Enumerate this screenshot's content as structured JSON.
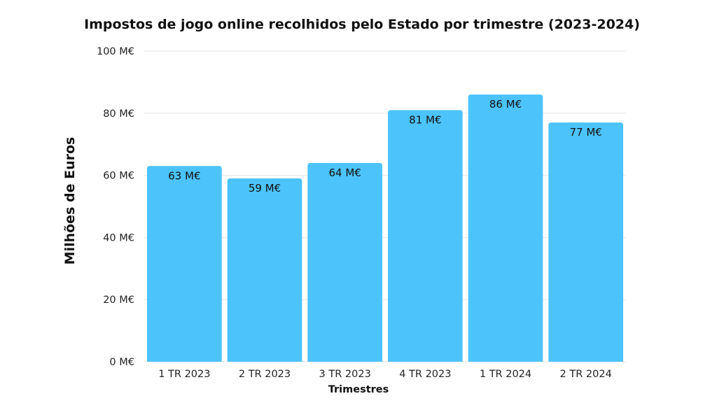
{
  "chart_data": {
    "type": "bar",
    "title": "Impostos de jogo online recolhidos pelo Estado por trimestre (2023-2024)",
    "xlabel": "Trimestres",
    "ylabel": "Milhões de Euros",
    "categories": [
      "1 TR 2023",
      "2 TR 2023",
      "3 TR 2023",
      "4 TR 2023",
      "1 TR 2024",
      "2 TR 2024"
    ],
    "values": [
      63,
      59,
      64,
      81,
      86,
      77
    ],
    "data_labels": [
      "63 M€",
      "59 M€",
      "64 M€",
      "81 M€",
      "86 M€",
      "77 M€"
    ],
    "ylim": [
      0,
      100
    ],
    "yticks": [
      0,
      20,
      40,
      60,
      80,
      100
    ],
    "ytick_labels": [
      "0 M€",
      "20 M€",
      "40 M€",
      "60 M€",
      "80 M€",
      "100 M€"
    ],
    "grid": true,
    "legend": "none",
    "bar_color": "#4cc3fb",
    "grid_color": "#e6e6e6"
  }
}
